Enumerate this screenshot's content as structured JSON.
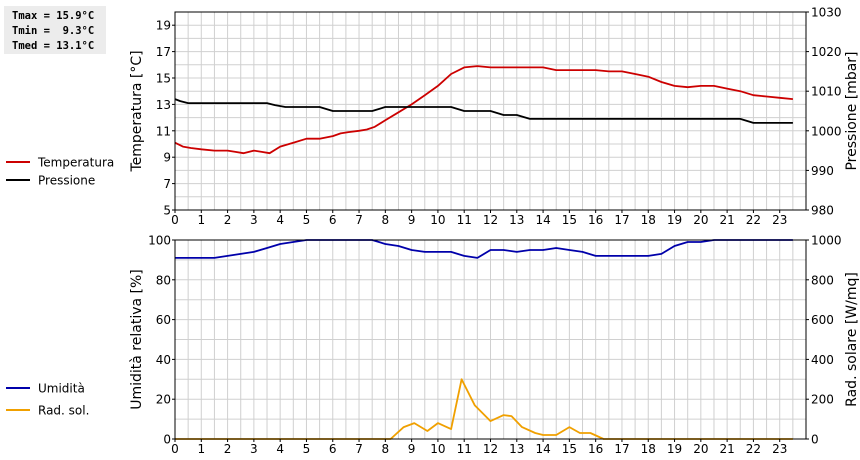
{
  "stats": {
    "tmax": "Tmax = 15.9°C",
    "tmin": "Tmin =  9.3°C",
    "tmed": "Tmed = 13.1°C"
  },
  "colors": {
    "temperature": "#cc0000",
    "pressure": "#000000",
    "humidity": "#0000aa",
    "radiation": "#f0a000",
    "grid": "#d0d0d0"
  },
  "chart_data": [
    {
      "type": "line",
      "x_ticks": [
        0,
        1,
        2,
        3,
        4,
        5,
        6,
        7,
        8,
        9,
        10,
        11,
        12,
        13,
        14,
        15,
        16,
        17,
        18,
        19,
        20,
        21,
        22,
        23
      ],
      "xlim": [
        0,
        24
      ],
      "ylabel": "Temperatura [°C]",
      "ylim": [
        5,
        20
      ],
      "y_ticks": [
        5,
        7,
        9,
        11,
        13,
        15,
        17,
        19
      ],
      "ylabel_right": "Pressione [mbar]",
      "ylim_right": [
        980,
        1030
      ],
      "y_ticks_right": [
        980,
        990,
        1000,
        1010,
        1020,
        1030
      ],
      "grid": true,
      "legend_position": "left",
      "series": [
        {
          "name": "Temperatura",
          "axis": "left",
          "x": [
            0,
            0.3,
            0.6,
            1,
            1.5,
            2,
            2.3,
            2.6,
            3,
            3.3,
            3.6,
            4,
            4.5,
            5,
            5.5,
            6,
            6.3,
            6.6,
            7,
            7.3,
            7.6,
            8,
            8.5,
            9,
            9.5,
            10,
            10.5,
            11,
            11.5,
            12,
            12.5,
            13,
            13.5,
            14,
            14.5,
            15,
            15.5,
            16,
            16.5,
            17,
            17.5,
            18,
            18.5,
            19,
            19.5,
            20,
            20.5,
            21,
            21.5,
            22,
            22.5,
            23,
            23.5
          ],
          "values": [
            10.1,
            9.8,
            9.7,
            9.6,
            9.5,
            9.5,
            9.4,
            9.3,
            9.5,
            9.4,
            9.3,
            9.8,
            10.1,
            10.4,
            10.4,
            10.6,
            10.8,
            10.9,
            11.0,
            11.1,
            11.3,
            11.8,
            12.4,
            13.0,
            13.7,
            14.4,
            15.3,
            15.8,
            15.9,
            15.8,
            15.8,
            15.8,
            15.8,
            15.8,
            15.6,
            15.6,
            15.6,
            15.6,
            15.5,
            15.5,
            15.3,
            15.1,
            14.7,
            14.4,
            14.3,
            14.4,
            14.4,
            14.2,
            14.0,
            13.7,
            13.6,
            13.5,
            13.4
          ]
        },
        {
          "name": "Pressione",
          "axis": "right",
          "x": [
            0,
            0.2,
            0.5,
            1,
            1.5,
            2,
            2.5,
            3,
            3.5,
            3.8,
            4.2,
            5,
            5.5,
            6,
            6.5,
            7,
            7.5,
            8,
            8.5,
            9,
            9.5,
            10,
            10.5,
            11,
            11.5,
            12,
            12.5,
            13,
            13.5,
            14,
            14.5,
            15,
            15.5,
            16,
            16.5,
            17,
            17.5,
            18,
            18.5,
            19,
            19.5,
            20,
            20.5,
            21,
            21.5,
            22,
            22.5,
            23,
            23.5
          ],
          "values": [
            1008,
            1007.5,
            1007,
            1007,
            1007,
            1007,
            1007,
            1007,
            1007,
            1006.5,
            1006,
            1006,
            1006,
            1005,
            1005,
            1005,
            1005,
            1006,
            1006,
            1006,
            1006,
            1006,
            1006,
            1005,
            1005,
            1005,
            1004,
            1004,
            1003,
            1003,
            1003,
            1003,
            1003,
            1003,
            1003,
            1003,
            1003,
            1003,
            1003,
            1003,
            1003,
            1003,
            1003,
            1003,
            1003,
            1002,
            1002,
            1002,
            1002
          ]
        }
      ]
    },
    {
      "type": "line",
      "x_ticks": [
        0,
        1,
        2,
        3,
        4,
        5,
        6,
        7,
        8,
        9,
        10,
        11,
        12,
        13,
        14,
        15,
        16,
        17,
        18,
        19,
        20,
        21,
        22,
        23
      ],
      "xlim": [
        0,
        24
      ],
      "ylabel": "Umidità relativa [%]",
      "ylim": [
        0,
        100
      ],
      "y_ticks": [
        0,
        20,
        40,
        60,
        80,
        100
      ],
      "ylabel_right": "Rad. solare [W/mq]",
      "ylim_right": [
        0,
        1000
      ],
      "y_ticks_right": [
        0,
        200,
        400,
        600,
        800,
        1000
      ],
      "grid": true,
      "legend_position": "left",
      "series": [
        {
          "name": "Umidità",
          "axis": "left",
          "x": [
            0,
            0.5,
            1,
            1.5,
            2,
            2.5,
            3,
            3.5,
            4,
            4.5,
            5,
            5.5,
            6,
            6.5,
            7,
            7.5,
            8,
            8.5,
            9,
            9.5,
            10,
            10.5,
            11,
            11.5,
            12,
            12.5,
            13,
            13.5,
            14,
            14.5,
            15,
            15.5,
            16,
            16.5,
            17,
            17.5,
            18,
            18.5,
            19,
            19.5,
            20,
            20.5,
            21,
            21.5,
            22,
            22.5,
            23,
            23.5
          ],
          "values": [
            91,
            91,
            91,
            91,
            92,
            93,
            94,
            96,
            98,
            99,
            100,
            100,
            100,
            100,
            100,
            100,
            98,
            97,
            95,
            94,
            94,
            94,
            92,
            91,
            95,
            95,
            94,
            95,
            95,
            96,
            95,
            94,
            92,
            92,
            92,
            92,
            92,
            93,
            97,
            99,
            99,
            100,
            100,
            100,
            100,
            100,
            100,
            100
          ]
        },
        {
          "name": "Rad. sol.",
          "axis": "right",
          "x": [
            0,
            1,
            2,
            3,
            4,
            5,
            6,
            7,
            8,
            8.2,
            8.7,
            9.1,
            9.6,
            10,
            10.5,
            10.9,
            11.4,
            12,
            12.5,
            12.8,
            13.2,
            13.7,
            14,
            14.5,
            15,
            15.4,
            15.8,
            16.3,
            16.5,
            17,
            18,
            19,
            20,
            21,
            22,
            23,
            23.5
          ],
          "values": [
            0,
            0,
            0,
            0,
            0,
            0,
            0,
            0,
            0,
            0,
            60,
            80,
            40,
            80,
            50,
            300,
            170,
            90,
            120,
            115,
            60,
            30,
            20,
            20,
            60,
            30,
            30,
            0,
            0,
            0,
            0,
            0,
            0,
            0,
            0,
            0,
            0
          ]
        }
      ]
    }
  ]
}
